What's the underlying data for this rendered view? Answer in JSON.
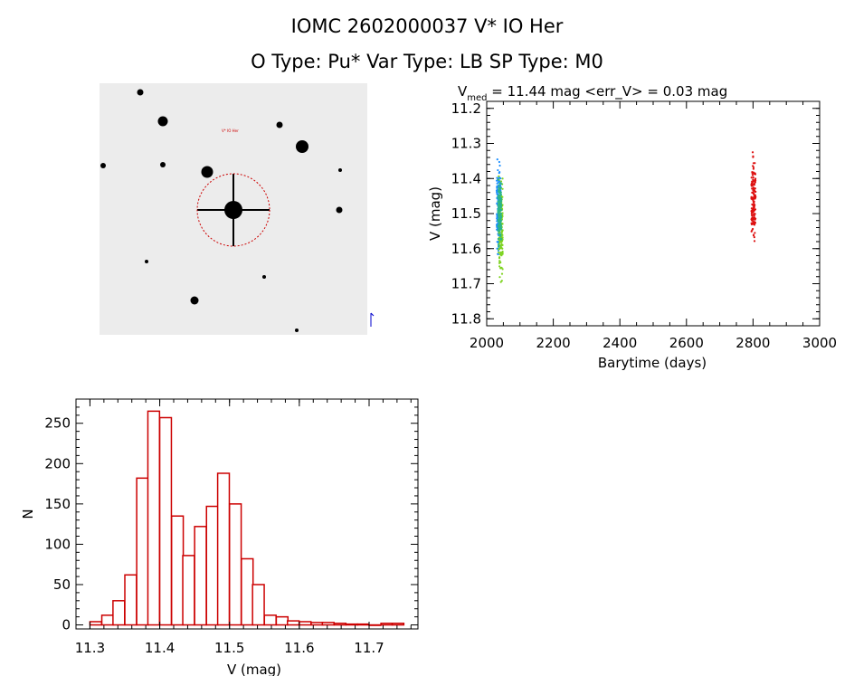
{
  "header": {
    "line1": "IOMC 2602000037    V* IO Her",
    "line2": "O Type: Pu*   Var Type: LB   SP Type: M0"
  },
  "image_panel": {
    "circle_color": "#cc0000",
    "labels": [
      "V* IO Her"
    ]
  },
  "chart_data": [
    {
      "type": "scatter",
      "title_parts": {
        "v": "V",
        "sub": "med",
        "rest": " = 11.44 mag <err_V> = 0.03 mag"
      },
      "xlabel": "Barytime (days)",
      "ylabel": "V (mag)",
      "xlim": [
        2000,
        3000
      ],
      "ylim": [
        11.82,
        11.18
      ],
      "y_inverted": true,
      "xticks": [
        2000,
        2200,
        2400,
        2600,
        2800,
        3000
      ],
      "yticks": [
        11.2,
        11.3,
        11.4,
        11.5,
        11.6,
        11.7,
        11.8
      ],
      "series": [
        {
          "color": "#1e90ff",
          "x_range": [
            2030,
            2042
          ],
          "y_range": [
            11.33,
            11.66
          ]
        },
        {
          "color": "#7ed321",
          "x_range": [
            2036,
            2048
          ],
          "y_range": [
            11.36,
            11.74
          ]
        },
        {
          "color": "#2bb58a",
          "x_range": [
            2034,
            2044
          ],
          "y_range": [
            11.38,
            11.62
          ]
        },
        {
          "color": "#dd1111",
          "x_range": [
            2795,
            2808
          ],
          "y_range": [
            11.3,
            11.62
          ]
        }
      ]
    },
    {
      "type": "bar",
      "xlabel": "V (mag)",
      "ylabel": "N",
      "xlim": [
        11.28,
        11.77
      ],
      "ylim": [
        -5,
        280
      ],
      "xticks": [
        11.3,
        11.4,
        11.5,
        11.6,
        11.7
      ],
      "yticks": [
        0,
        50,
        100,
        150,
        200,
        250
      ],
      "bin_width": 0.0167,
      "bin_starts": [
        11.3,
        11.317,
        11.333,
        11.35,
        11.367,
        11.383,
        11.4,
        11.417,
        11.433,
        11.45,
        11.467,
        11.483,
        11.5,
        11.517,
        11.533,
        11.55,
        11.567,
        11.583,
        11.6,
        11.617,
        11.633,
        11.65,
        11.667,
        11.683,
        11.7,
        11.717,
        11.733
      ],
      "values": [
        4,
        12,
        30,
        62,
        182,
        265,
        257,
        135,
        86,
        122,
        147,
        188,
        150,
        82,
        50,
        12,
        10,
        5,
        4,
        3,
        3,
        2,
        1,
        1,
        0,
        2,
        2
      ],
      "bar_color": "#cc0000"
    }
  ]
}
